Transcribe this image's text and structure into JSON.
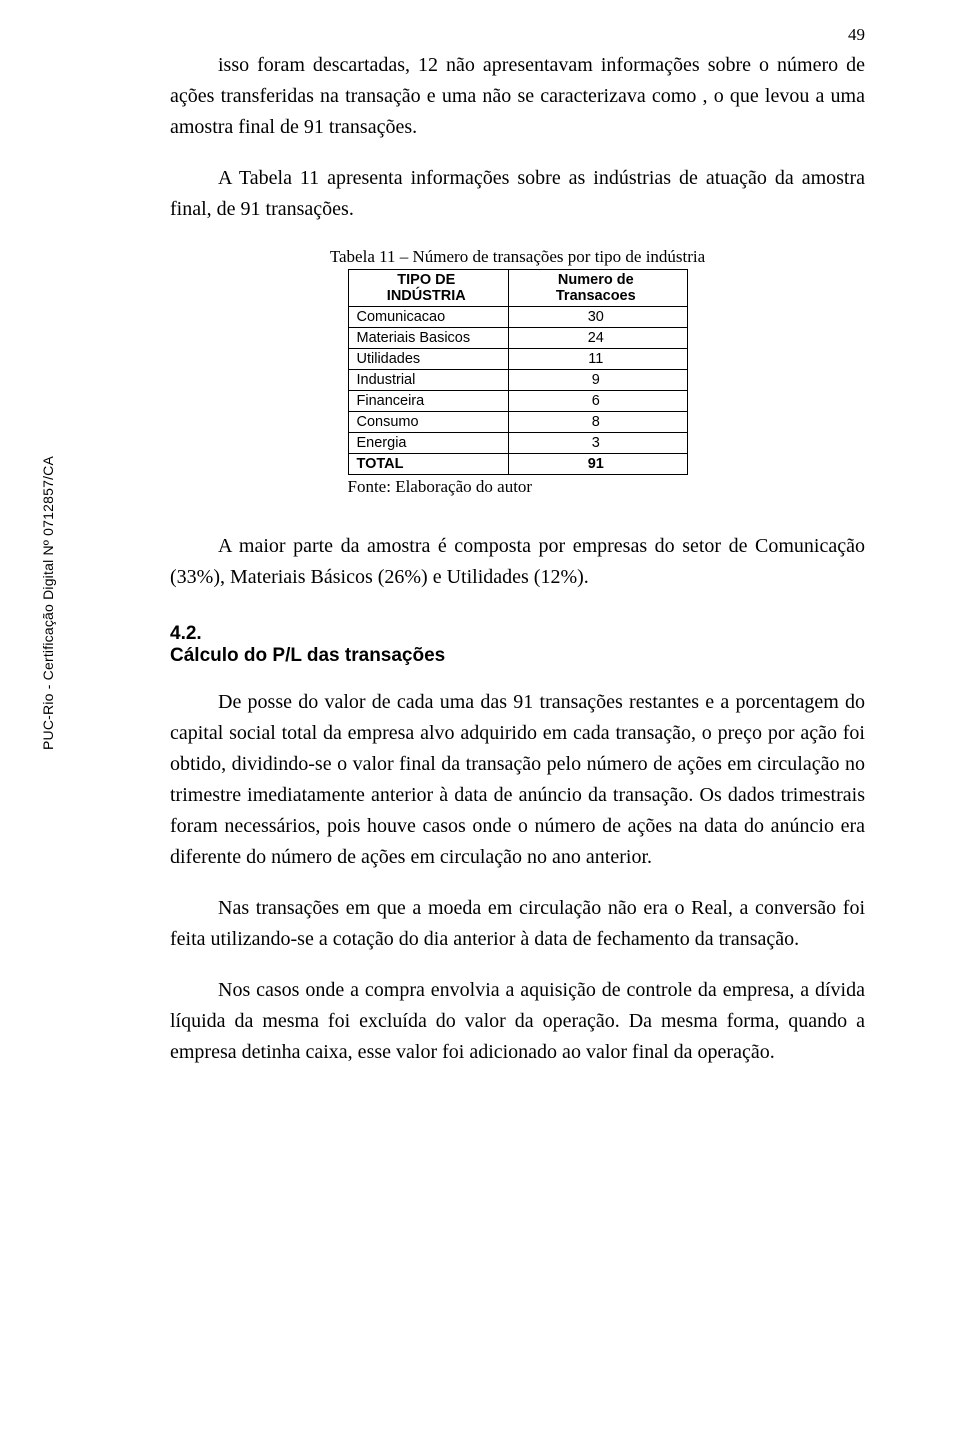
{
  "page_number": "49",
  "sidebar": "PUC-Rio - Certificação Digital Nº 0712857/CA",
  "paragraphs": {
    "p1": "isso foram descartadas, 12 não apresentavam informações sobre o número de ações transferidas na transação e uma não se caracterizava como , o que levou a uma amostra final de 91 transações.",
    "p2": "A Tabela 11 apresenta informações sobre as indústrias de atuação da amostra final, de 91 transações.",
    "p3": "A maior parte da amostra é composta por empresas do setor de Comunicação (33%), Materiais Básicos (26%) e Utilidades (12%).",
    "p4": "De posse do valor de cada uma das 91 transações restantes e a porcentagem do capital social total da empresa alvo adquirido em cada transação, o preço por ação foi obtido, dividindo-se o valor final da transação pelo número de ações em circulação no trimestre imediatamente anterior à data de anúncio da transação. Os dados trimestrais foram necessários, pois houve casos onde o número de ações na data do anúncio era diferente do número de ações em circulação no ano anterior.",
    "p5": "Nas transações em que a moeda em circulação não era o Real, a conversão foi feita utilizando-se a cotação do dia anterior à data de fechamento da transação.",
    "p6": "Nos casos onde a compra envolvia a aquisição de controle da empresa, a dívida líquida da mesma foi excluída do valor da operação. Da mesma forma, quando a empresa detinha caixa, esse valor foi adicionado ao valor final da operação."
  },
  "section": {
    "num": "4.2.",
    "title": "Cálculo do P/L das transações"
  },
  "table": {
    "caption": "Tabela 11 – Número de transações por tipo de indústria",
    "source": "Fonte: Elaboração do autor",
    "col1_header": "TIPO DE INDÚSTRIA",
    "col2_header": "Numero de Transacoes",
    "rows": [
      {
        "label": "Comunicacao",
        "value": "30"
      },
      {
        "label": "Materiais Basicos",
        "value": "24"
      },
      {
        "label": "Utilidades",
        "value": "11"
      },
      {
        "label": "Industrial",
        "value": "9"
      },
      {
        "label": "Financeira",
        "value": "6"
      },
      {
        "label": "Consumo",
        "value": "8"
      },
      {
        "label": "Energia",
        "value": "3"
      }
    ],
    "total_label": "TOTAL",
    "total_value": "91"
  }
}
